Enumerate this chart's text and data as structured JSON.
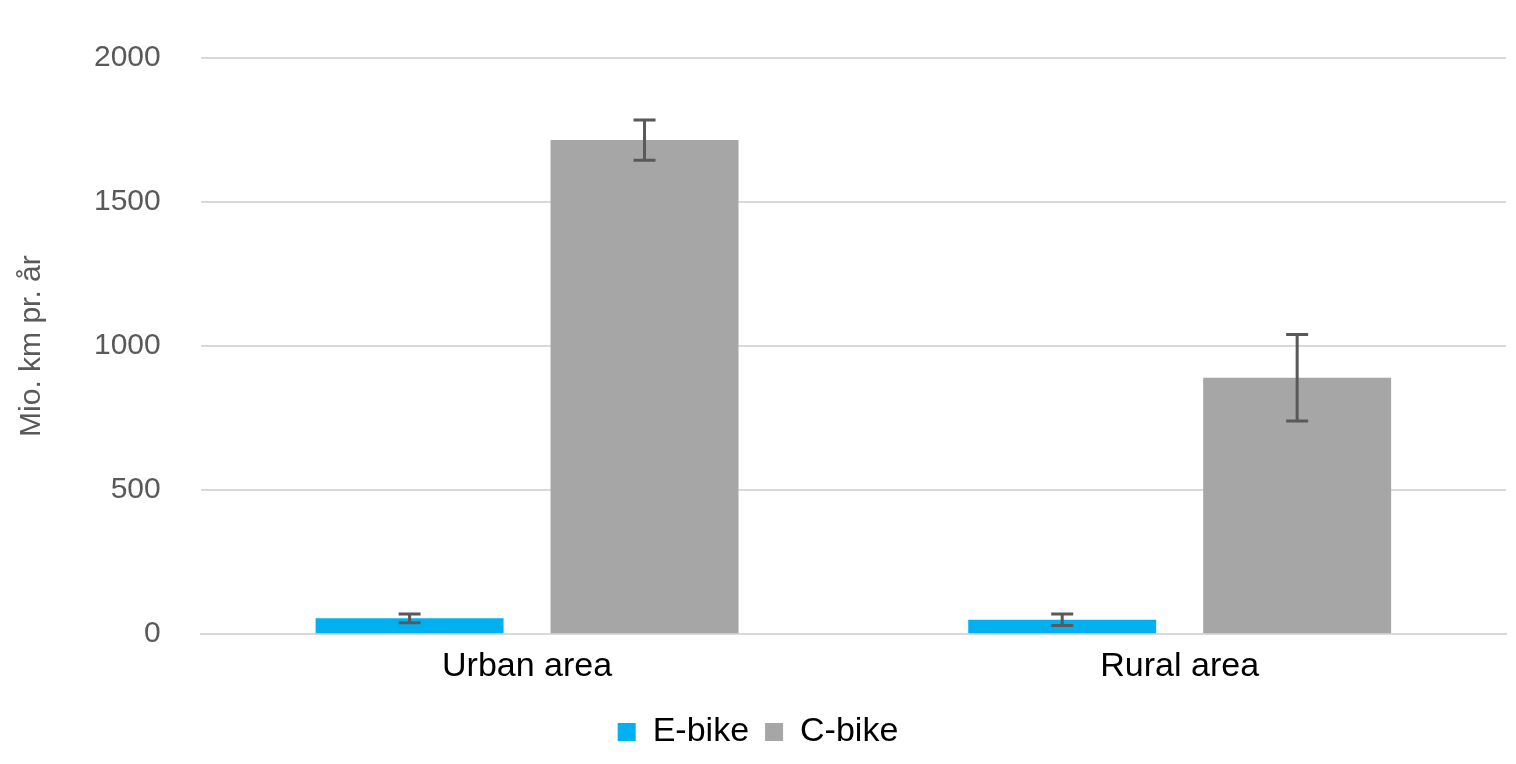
{
  "chart_data": {
    "type": "bar",
    "ylabel": "Mio. km pr. år",
    "categories": [
      "Urban area",
      "Rural area"
    ],
    "series": [
      {
        "name": "E-bike",
        "color": "#00b0f0",
        "values": [
          55,
          50
        ],
        "errors": [
          15,
          20
        ]
      },
      {
        "name": "C-bike",
        "color": "#a6a6a6",
        "values": [
          1715,
          890
        ],
        "errors": [
          70,
          150
        ]
      }
    ],
    "ylim": [
      0,
      2000
    ],
    "yticks": [
      0,
      500,
      1000,
      1500,
      2000
    ],
    "grid": "y",
    "legend": "bottom"
  }
}
